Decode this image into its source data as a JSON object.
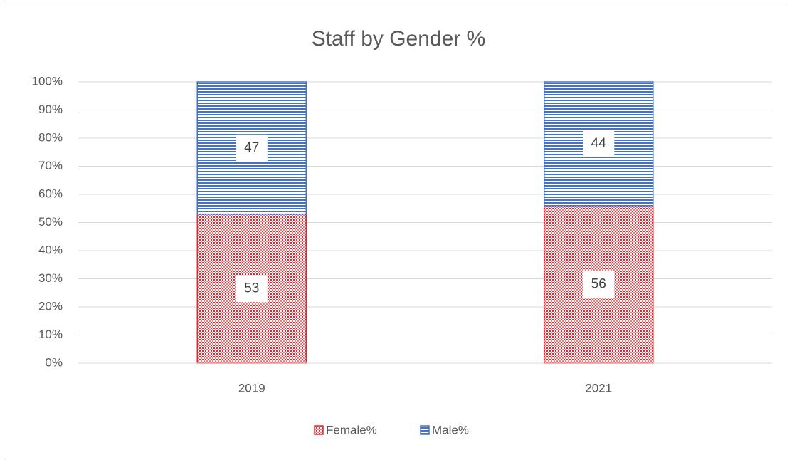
{
  "chart_data": {
    "type": "bar",
    "stacked": true,
    "title": "Staff by Gender %",
    "categories": [
      "2019",
      "2021"
    ],
    "series": [
      {
        "name": "Female%",
        "color": "#e8262b",
        "values": [
          53,
          56
        ]
      },
      {
        "name": "Male%",
        "color": "#4472c4",
        "values": [
          47,
          44
        ]
      }
    ],
    "ylim": [
      0,
      100
    ],
    "yticks": [
      {
        "value": 0,
        "label": "0%"
      },
      {
        "value": 10,
        "label": "10%"
      },
      {
        "value": 20,
        "label": "20%"
      },
      {
        "value": 30,
        "label": "30%"
      },
      {
        "value": 40,
        "label": "40%"
      },
      {
        "value": 50,
        "label": "50%"
      },
      {
        "value": 60,
        "label": "60%"
      },
      {
        "value": 70,
        "label": "70%"
      },
      {
        "value": 80,
        "label": "80%"
      },
      {
        "value": 90,
        "label": "90%"
      },
      {
        "value": 100,
        "label": "100%"
      }
    ],
    "grid": true,
    "legend": "bottom"
  }
}
